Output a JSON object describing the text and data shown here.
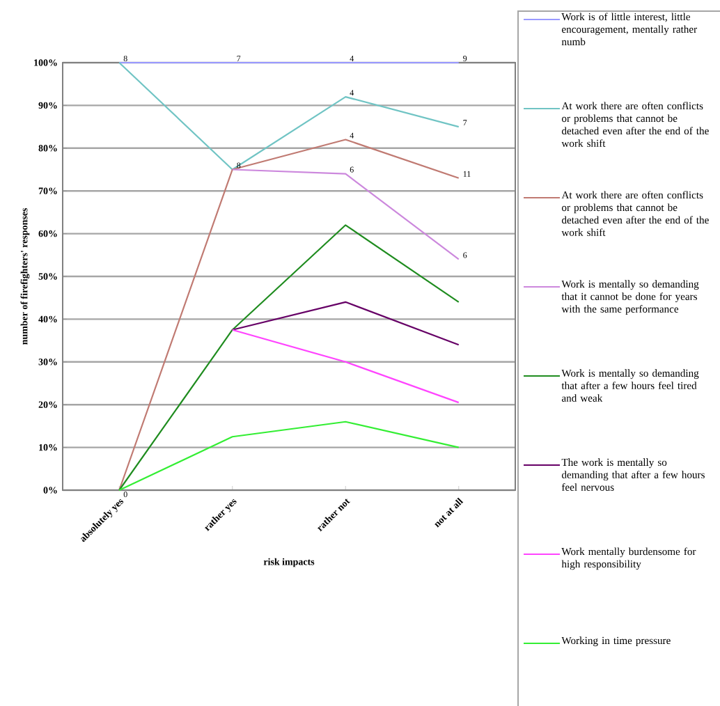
{
  "chart_data": {
    "type": "line",
    "xlabel": "risk impacts",
    "ylabel": "number of firefighters' responses",
    "categories": [
      "absolutely yes",
      "rather yes",
      "rather not",
      "not at all"
    ],
    "series": [
      {
        "name": "Work is of little interest, little encouragement, mentally rather numb",
        "color": "#9999ff",
        "values": [
          100,
          100,
          100,
          100
        ]
      },
      {
        "name": "At work there are often conflicts or problems that cannot be detached even after the end of the work shift",
        "color": "#70c4c4",
        "values": [
          100,
          75,
          92,
          85
        ]
      },
      {
        "name": "At work there are often conflicts or problems that cannot be detached even after the end of the work shift",
        "color": "#c07a72",
        "values": [
          0,
          75,
          82,
          73
        ]
      },
      {
        "name": "Work is mentally so demanding that it cannot be done for years with the same performance",
        "color": "#cc88dd",
        "values": [
          null,
          75,
          74,
          54
        ]
      },
      {
        "name": "Work is mentally so demanding that after a few hours feel tired and weak",
        "color": "#1f8c1f",
        "values": [
          0,
          37.5,
          62,
          44
        ]
      },
      {
        "name": "The work is mentally so demanding that after a few hours feel nervous",
        "color": "#660066",
        "values": [
          null,
          37.5,
          44,
          34
        ]
      },
      {
        "name": "Work mentally burdensome for high responsibility",
        "color": "#ff44ff",
        "values": [
          null,
          37.5,
          30,
          20.5
        ]
      },
      {
        "name": "Working in time pressure",
        "color": "#33ee33",
        "values": [
          0,
          12.5,
          16,
          10
        ]
      }
    ],
    "annotations": [
      {
        "text": "8",
        "x": "absolutely yes",
        "y": 100
      },
      {
        "text": "7",
        "x": "rather yes",
        "y": 100
      },
      {
        "text": "4",
        "x": "rather not",
        "y": 100
      },
      {
        "text": "9",
        "x": "not at all",
        "y": 100
      },
      {
        "text": "4",
        "x": "rather not",
        "y": 92
      },
      {
        "text": "7",
        "x": "not at all",
        "y": 85
      },
      {
        "text": "4",
        "x": "rather not",
        "y": 82
      },
      {
        "text": "11",
        "x": "not at all",
        "y": 73
      },
      {
        "text": "8",
        "x": "rather yes",
        "y": 75
      },
      {
        "text": "6",
        "x": "rather not",
        "y": 74
      },
      {
        "text": "6",
        "x": "not at all",
        "y": 54
      },
      {
        "text": "0",
        "x": "absolutely yes",
        "y": 0
      }
    ],
    "ylim": [
      0,
      100
    ],
    "yticks": [
      {
        "value": 0,
        "label": "0%"
      },
      {
        "value": 10,
        "label": "10%"
      },
      {
        "value": 20,
        "label": "20%"
      },
      {
        "value": 30,
        "label": "30%"
      },
      {
        "value": 40,
        "label": "40%"
      },
      {
        "value": 50,
        "label": "50%"
      },
      {
        "value": 60,
        "label": "60%"
      },
      {
        "value": 70,
        "label": "70%"
      },
      {
        "value": 80,
        "label": "80%"
      },
      {
        "value": 90,
        "label": "90%"
      },
      {
        "value": 100,
        "label": "100%"
      }
    ],
    "grid": "y",
    "legend": "right",
    "marker": "none",
    "line_style": "solid"
  }
}
